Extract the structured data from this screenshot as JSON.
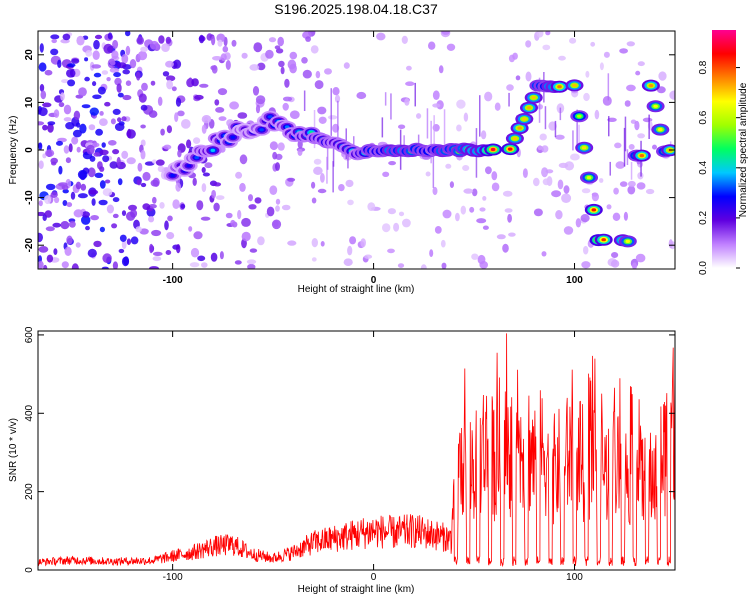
{
  "title": "S196.2025.198.04.18.C37",
  "chart_data": [
    {
      "type": "heatmap",
      "xlabel": "Height of straight line (km)",
      "ylabel": "Frequency (Hz)",
      "xlim": [
        -167,
        150
      ],
      "ylim": [
        -25,
        25
      ],
      "x_ticks": [
        -100,
        0,
        100
      ],
      "y_ticks": [
        -20,
        -10,
        0,
        10,
        20
      ],
      "colorbar": {
        "label": "Normalized spectral amplitude",
        "range": [
          0,
          0.95
        ],
        "ticks": [
          0.0,
          0.2,
          0.4,
          0.6,
          0.8
        ],
        "colors": [
          "#ffffff",
          "#c080ff",
          "#6000e0",
          "#0000ff",
          "#00c8ff",
          "#00ff60",
          "#a0ff00",
          "#ffff00",
          "#ff8000",
          "#ff0000",
          "#ff0090"
        ]
      },
      "ridge": [
        {
          "x": -100,
          "y": -5,
          "a": 0.3
        },
        {
          "x": -90,
          "y": -2,
          "a": 0.35
        },
        {
          "x": -80,
          "y": 1,
          "a": 0.4
        },
        {
          "x": -70,
          "y": 3,
          "a": 0.35
        },
        {
          "x": -60,
          "y": 5,
          "a": 0.3
        },
        {
          "x": -45,
          "y": 6,
          "a": 0.4
        },
        {
          "x": -35,
          "y": 3,
          "a": 0.5
        },
        {
          "x": -25,
          "y": 2,
          "a": 0.5
        },
        {
          "x": -15,
          "y": 1,
          "a": 0.5
        },
        {
          "x": -8,
          "y": -1,
          "a": 0.55
        },
        {
          "x": 0,
          "y": 0,
          "a": 0.65
        },
        {
          "x": 15,
          "y": 0,
          "a": 0.8
        },
        {
          "x": 30,
          "y": 0,
          "a": 0.6
        },
        {
          "x": 45,
          "y": 0,
          "a": 0.85
        },
        {
          "x": 57,
          "y": 0,
          "a": 0.9
        },
        {
          "x": 68,
          "y": 0,
          "a": 0.9
        },
        {
          "x": 82,
          "y": 13.5,
          "a": 0.75
        },
        {
          "x": 90,
          "y": 13.5,
          "a": 0.8
        },
        {
          "x": 100,
          "y": 13.5,
          "a": 0.75
        },
        {
          "x": 112,
          "y": -19,
          "a": 0.9
        },
        {
          "x": 124,
          "y": -19,
          "a": 0.8
        },
        {
          "x": 131,
          "y": -1,
          "a": 0.8
        },
        {
          "x": 138,
          "y": 13.5,
          "a": 0.8
        },
        {
          "x": 145,
          "y": 0,
          "a": 0.75
        }
      ]
    },
    {
      "type": "line",
      "xlabel": "Height of straight line (km)",
      "ylabel": "SNR (10 * v/v)",
      "xlim": [
        -167,
        150
      ],
      "ylim": [
        0,
        610
      ],
      "x_ticks": [
        -100,
        0,
        100
      ],
      "y_ticks": [
        0,
        200,
        400,
        600
      ],
      "series": [
        {
          "color": "#ff0000",
          "x": [
            -167,
            -150,
            -130,
            -110,
            -100,
            -90,
            -80,
            -70,
            -60,
            -50,
            -40,
            -30,
            -20,
            -10,
            0,
            10,
            20,
            30,
            38,
            42,
            46,
            50,
            55,
            60,
            65,
            70,
            75,
            80,
            85,
            90,
            95,
            100,
            105,
            110,
            115,
            120,
            125,
            130,
            135,
            140,
            145,
            150
          ],
          "y": [
            20,
            25,
            22,
            24,
            35,
            45,
            60,
            65,
            40,
            30,
            45,
            70,
            80,
            90,
            100,
            95,
            100,
            90,
            80,
            300,
            380,
            320,
            400,
            350,
            450,
            330,
            420,
            360,
            380,
            320,
            350,
            380,
            330,
            370,
            310,
            340,
            300,
            320,
            280,
            300,
            380,
            500
          ]
        }
      ]
    }
  ]
}
